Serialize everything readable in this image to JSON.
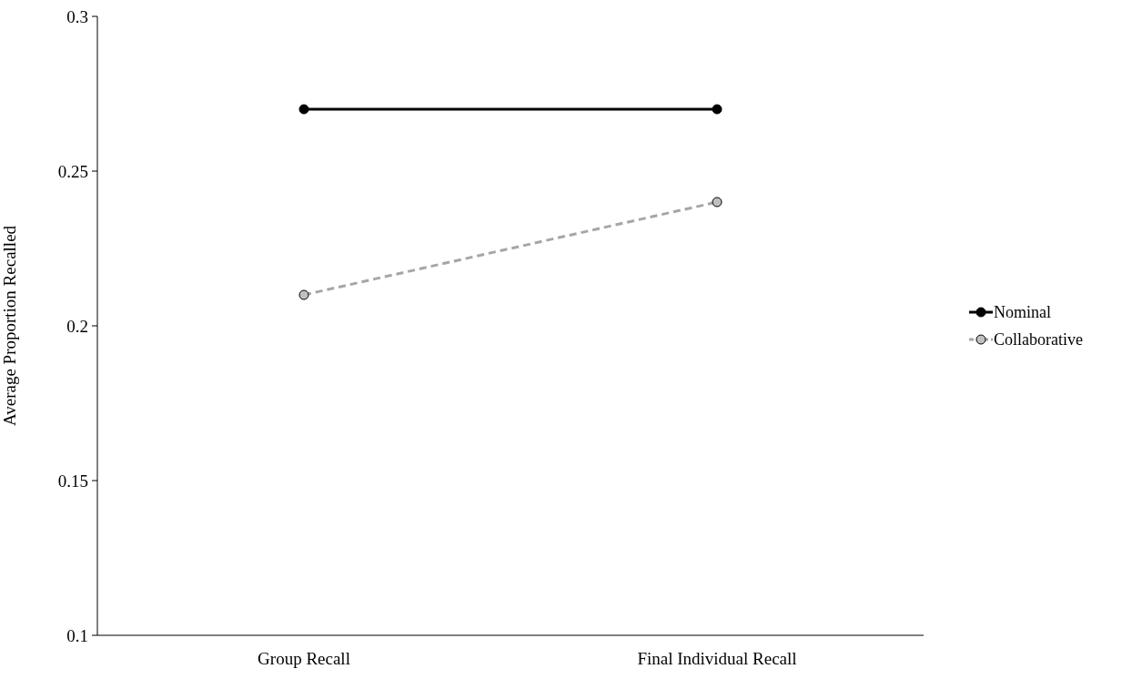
{
  "chart_data": {
    "type": "line",
    "ylabel": "Average Proportion Recalled",
    "categories": [
      "Group Recall",
      "Final Individual Recall"
    ],
    "series": [
      {
        "name": "Nominal",
        "color": "#000000",
        "values": [
          0.27,
          0.27
        ],
        "line_style": "solid"
      },
      {
        "name": "Collaborative",
        "color": "#a6a6a6",
        "values": [
          0.21,
          0.24
        ],
        "line_style": "dashed"
      }
    ],
    "ylim": [
      0.1,
      0.3
    ],
    "yticks": [
      0.1,
      0.15,
      0.2,
      0.25,
      0.3
    ],
    "grid": false,
    "legend": "right",
    "marker": "circle"
  }
}
